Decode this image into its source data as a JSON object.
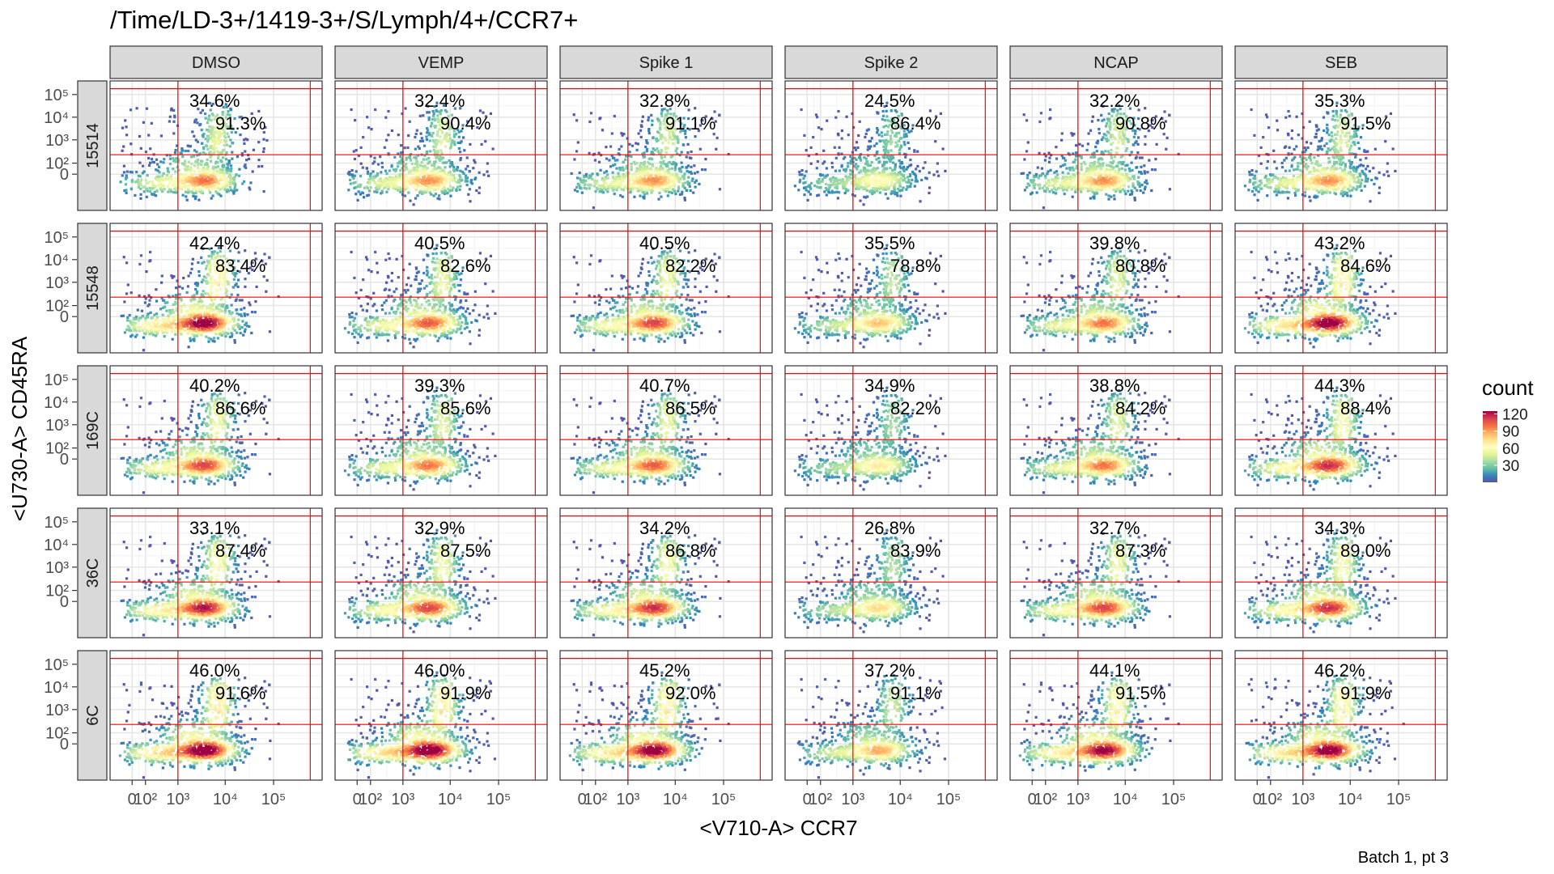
{
  "chart_data": {
    "type": "heatmap",
    "title": "/Time/LD-3+/1419-3+/S/Lymph/4+/CCR7+",
    "xlabel": "<V710-A> CCR7",
    "ylabel": "<U730-A> CD45RA",
    "caption": "Batch 1, pt 3",
    "columns": [
      "DMSO",
      "VEMP",
      "Spike 1",
      "Spike 2",
      "NCAP",
      "SEB"
    ],
    "rows": [
      "15514",
      "15548",
      "169C",
      "36C",
      "6C"
    ],
    "x_ticks": [
      "0",
      "10²",
      "10³",
      "10⁴",
      "10⁵"
    ],
    "y_ticks": [
      "10⁵",
      "10⁴",
      "10³",
      "10²",
      "0"
    ],
    "legend": {
      "title": "count",
      "ticks": [
        "120",
        "90",
        "60",
        "30"
      ],
      "range": [
        0,
        125
      ],
      "colors": [
        "#5e4fa2",
        "#3288bd",
        "#66c2a5",
        "#abdda4",
        "#e6f598",
        "#ffffbf",
        "#fee08b",
        "#fdae61",
        "#f46d43",
        "#d53e4f",
        "#9e0142"
      ]
    },
    "gate_color": "#ff0000",
    "panels": [
      {
        "row": "15514",
        "column": "DMSO",
        "upper_pct": "34.6%",
        "lower_pct": "91.3%",
        "peak": 85
      },
      {
        "row": "15514",
        "column": "VEMP",
        "upper_pct": "32.4%",
        "lower_pct": "90.4%",
        "peak": 80
      },
      {
        "row": "15514",
        "column": "Spike 1",
        "upper_pct": "32.8%",
        "lower_pct": "91.1%",
        "peak": 80
      },
      {
        "row": "15514",
        "column": "Spike 2",
        "upper_pct": "24.5%",
        "lower_pct": "86.4%",
        "peak": 55
      },
      {
        "row": "15514",
        "column": "NCAP",
        "upper_pct": "32.2%",
        "lower_pct": "90.8%",
        "peak": 80
      },
      {
        "row": "15514",
        "column": "SEB",
        "upper_pct": "35.3%",
        "lower_pct": "91.5%",
        "peak": 80
      },
      {
        "row": "15548",
        "column": "DMSO",
        "upper_pct": "42.4%",
        "lower_pct": "83.4%",
        "peak": 115
      },
      {
        "row": "15548",
        "column": "VEMP",
        "upper_pct": "40.5%",
        "lower_pct": "82.6%",
        "peak": 90
      },
      {
        "row": "15548",
        "column": "Spike 1",
        "upper_pct": "40.5%",
        "lower_pct": "82.2%",
        "peak": 95
      },
      {
        "row": "15548",
        "column": "Spike 2",
        "upper_pct": "35.5%",
        "lower_pct": "78.8%",
        "peak": 70
      },
      {
        "row": "15548",
        "column": "NCAP",
        "upper_pct": "39.8%",
        "lower_pct": "80.8%",
        "peak": 85
      },
      {
        "row": "15548",
        "column": "SEB",
        "upper_pct": "43.2%",
        "lower_pct": "84.6%",
        "peak": 115
      },
      {
        "row": "169C",
        "column": "DMSO",
        "upper_pct": "40.2%",
        "lower_pct": "86.6%",
        "peak": 95
      },
      {
        "row": "169C",
        "column": "VEMP",
        "upper_pct": "39.3%",
        "lower_pct": "85.6%",
        "peak": 85
      },
      {
        "row": "169C",
        "column": "Spike 1",
        "upper_pct": "40.7%",
        "lower_pct": "86.5%",
        "peak": 90
      },
      {
        "row": "169C",
        "column": "Spike 2",
        "upper_pct": "34.9%",
        "lower_pct": "82.2%",
        "peak": 60
      },
      {
        "row": "169C",
        "column": "NCAP",
        "upper_pct": "38.8%",
        "lower_pct": "84.2%",
        "peak": 85
      },
      {
        "row": "169C",
        "column": "SEB",
        "upper_pct": "44.3%",
        "lower_pct": "88.4%",
        "peak": 100
      },
      {
        "row": "36C",
        "column": "DMSO",
        "upper_pct": "33.1%",
        "lower_pct": "87.4%",
        "peak": 105
      },
      {
        "row": "36C",
        "column": "VEMP",
        "upper_pct": "32.9%",
        "lower_pct": "87.5%",
        "peak": 95
      },
      {
        "row": "36C",
        "column": "Spike 1",
        "upper_pct": "34.2%",
        "lower_pct": "86.8%",
        "peak": 100
      },
      {
        "row": "36C",
        "column": "Spike 2",
        "upper_pct": "26.8%",
        "lower_pct": "83.9%",
        "peak": 65
      },
      {
        "row": "36C",
        "column": "NCAP",
        "upper_pct": "32.7%",
        "lower_pct": "87.3%",
        "peak": 95
      },
      {
        "row": "36C",
        "column": "SEB",
        "upper_pct": "34.3%",
        "lower_pct": "89.0%",
        "peak": 100
      },
      {
        "row": "6C",
        "column": "DMSO",
        "upper_pct": "46.0%",
        "lower_pct": "91.6%",
        "peak": 120
      },
      {
        "row": "6C",
        "column": "VEMP",
        "upper_pct": "46.0%",
        "lower_pct": "91.9%",
        "peak": 120
      },
      {
        "row": "6C",
        "column": "Spike 1",
        "upper_pct": "45.2%",
        "lower_pct": "92.0%",
        "peak": 115
      },
      {
        "row": "6C",
        "column": "Spike 2",
        "upper_pct": "37.2%",
        "lower_pct": "91.1%",
        "peak": 75
      },
      {
        "row": "6C",
        "column": "NCAP",
        "upper_pct": "44.1%",
        "lower_pct": "91.5%",
        "peak": 110
      },
      {
        "row": "6C",
        "column": "SEB",
        "upper_pct": "46.2%",
        "lower_pct": "91.9%",
        "peak": 115
      }
    ]
  }
}
